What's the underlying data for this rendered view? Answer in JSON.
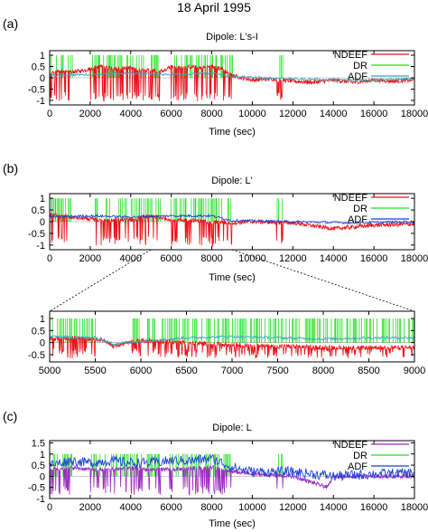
{
  "figure": {
    "title": "18 April 1995",
    "labels": [
      "(a)",
      "(b)",
      "(c)"
    ]
  },
  "colors": {
    "NDEEF_red": "#e8141b",
    "DR_green": "#22dd22",
    "ADF_blue": "#1f3fd8",
    "ADF_cyan": "#3aa6c2",
    "NDEEF_purple": "#9b2fbf"
  },
  "chart_data": [
    {
      "type": "line",
      "title": "Dipole: L's-I",
      "xlabel": "Time (sec)",
      "ylabel": "",
      "xlim": [
        0,
        18000
      ],
      "ylim": [
        -1.2,
        1.2
      ],
      "xticks": [
        "0",
        "2000",
        "4000",
        "6000",
        "8000",
        "10000",
        "12000",
        "14000",
        "16000",
        "18000"
      ],
      "yticks": [
        "1",
        "0.5",
        "0",
        "-0.5",
        "-1"
      ],
      "legend_position": "top-right",
      "series": [
        {
          "name": "NDEEF",
          "color": "#e8141b",
          "x": [
            0,
            500,
            1000,
            1500,
            2000,
            2500,
            3000,
            3500,
            4000,
            4500,
            5000,
            5500,
            6000,
            6500,
            7000,
            7500,
            8000,
            8500,
            9000,
            10000,
            11000,
            12000,
            13000,
            14000,
            15000,
            16000,
            17000,
            18000
          ],
          "values": [
            0.2,
            0.3,
            0.25,
            0.3,
            0.4,
            0.5,
            0.45,
            0.4,
            0.45,
            0.3,
            0.35,
            0.3,
            0.5,
            0.45,
            0.5,
            0.45,
            0.5,
            0.4,
            0.1,
            -0.1,
            -0.05,
            -0.15,
            -0.2,
            -0.1,
            -0.2,
            -0.1,
            -0.15,
            -0.1
          ]
        },
        {
          "name": "DR",
          "color": "#22dd22",
          "x": [
            0,
            2000,
            5500,
            6000,
            9000,
            11200,
            11500,
            18000
          ],
          "values": [
            1,
            1,
            1,
            1,
            1,
            1,
            1,
            0
          ]
        },
        {
          "name": "ADF",
          "color": "#3aa6c2",
          "x": [
            0,
            2000,
            4000,
            6000,
            8000,
            9000,
            12000,
            15000,
            18000
          ],
          "values": [
            0.1,
            0.15,
            0.2,
            0.15,
            0.2,
            0.05,
            -0.05,
            -0.1,
            -0.05
          ]
        }
      ]
    },
    {
      "type": "line",
      "title": "Dipole: L'",
      "xlabel": "Time (sec)",
      "ylabel": "",
      "xlim": [
        0,
        18000
      ],
      "ylim": [
        -1.2,
        1.2
      ],
      "xticks": [
        "0",
        "2000",
        "4000",
        "6000",
        "8000",
        "10000",
        "12000",
        "14000",
        "16000",
        "18000"
      ],
      "yticks": [
        "1",
        "0.5",
        "0",
        "-0.5",
        "-1"
      ],
      "legend_position": "top-right",
      "series": [
        {
          "name": "NDEEF",
          "color": "#e8141b",
          "x": [
            0,
            1000,
            2000,
            3000,
            4000,
            5000,
            6000,
            7000,
            8000,
            9000,
            10000,
            12000,
            14000,
            16000,
            18000
          ],
          "values": [
            0.3,
            0.2,
            0.1,
            0.05,
            0.1,
            0.25,
            0.1,
            0.05,
            0.0,
            -0.05,
            0.0,
            -0.05,
            -0.3,
            -0.15,
            -0.1
          ]
        },
        {
          "name": "DR",
          "color": "#22dd22",
          "x": [
            0,
            2000,
            5500,
            6000,
            9000,
            11200,
            11500,
            18000
          ],
          "values": [
            1,
            1,
            1,
            1,
            1,
            1,
            1,
            0
          ]
        },
        {
          "name": "ADF",
          "color": "#1f3fd8",
          "x": [
            0,
            2000,
            4000,
            6000,
            8000,
            9000,
            12000,
            15000,
            18000
          ],
          "values": [
            0.2,
            0.25,
            0.2,
            0.25,
            0.25,
            0.05,
            0.0,
            -0.05,
            0.0
          ]
        }
      ]
    },
    {
      "type": "line",
      "title": "",
      "xlabel": "",
      "ylabel": "",
      "xlim": [
        5000,
        9000
      ],
      "ylim": [
        -0.8,
        1.3
      ],
      "xticks": [
        "5000",
        "5500",
        "6000",
        "6500",
        "7000",
        "7500",
        "8000",
        "8500",
        "9000"
      ],
      "yticks": [
        "1",
        "0.5",
        "0",
        "-0.5"
      ],
      "series": [
        {
          "name": "NDEEF",
          "color": "#e8141b",
          "x": [
            5000,
            5300,
            5600,
            5700,
            6000,
            6500,
            7000,
            7500,
            8000,
            8500,
            9000
          ],
          "values": [
            0.15,
            0.2,
            0.1,
            -0.15,
            0.1,
            0.0,
            -0.1,
            -0.15,
            -0.2,
            -0.2,
            -0.2
          ]
        },
        {
          "name": "DR",
          "color": "#22dd22",
          "x": [
            5000,
            5600,
            6100,
            9000
          ],
          "values": [
            1,
            1,
            1,
            1
          ]
        },
        {
          "name": "ADF",
          "color": "#3aa6c2",
          "x": [
            5000,
            5500,
            5700,
            6000,
            6500,
            7000,
            7500,
            8000,
            8500,
            9000
          ],
          "values": [
            0.25,
            0.2,
            -0.05,
            0.05,
            0.2,
            0.25,
            0.2,
            0.15,
            0.2,
            0.2
          ]
        }
      ]
    },
    {
      "type": "line",
      "title": "Dipole: L",
      "xlabel": "Time (sec)",
      "ylabel": "",
      "xlim": [
        0,
        18000
      ],
      "ylim": [
        -1.0,
        1.6
      ],
      "xticks": [
        "0",
        "2000",
        "4000",
        "6000",
        "8000",
        "10000",
        "12000",
        "14000",
        "16000",
        "18000"
      ],
      "yticks": [
        "1.5",
        "1",
        "0.5",
        "0",
        "-0.5",
        "-1"
      ],
      "legend_position": "top-right",
      "series": [
        {
          "name": "NDEEF",
          "color": "#9b2fbf",
          "x": [
            0,
            1000,
            2000,
            3000,
            4000,
            5000,
            6000,
            7000,
            8000,
            9000,
            10000,
            12000,
            13700,
            14000,
            16000,
            18000
          ],
          "values": [
            0.3,
            0.4,
            0.3,
            0.3,
            0.35,
            0.3,
            0.3,
            0.35,
            0.4,
            0.2,
            0.1,
            0.0,
            -0.5,
            0.0,
            0.0,
            0.0
          ]
        },
        {
          "name": "DR",
          "color": "#22dd22",
          "x": [
            0,
            2000,
            5500,
            6000,
            9000,
            11200,
            11500,
            18000
          ],
          "values": [
            1,
            1,
            1,
            1,
            1,
            1,
            1,
            0
          ]
        },
        {
          "name": "ADF",
          "color": "#1f3fd8",
          "x": [
            0,
            1000,
            2000,
            3000,
            4000,
            5000,
            6000,
            7000,
            8000,
            9000,
            10000,
            12000,
            14000,
            16000,
            18000
          ],
          "values": [
            0.5,
            0.7,
            0.6,
            0.7,
            0.6,
            0.6,
            0.7,
            0.7,
            0.8,
            0.4,
            0.2,
            0.2,
            0.0,
            0.1,
            0.15
          ]
        }
      ]
    }
  ]
}
